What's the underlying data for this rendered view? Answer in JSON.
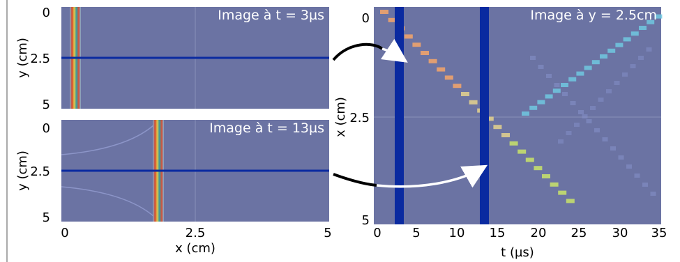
{
  "panels": {
    "top_left": {
      "caption": "Image à t = 3µs",
      "y_ticks": [
        "0",
        "2.5",
        "5"
      ],
      "ylabel": "y (cm)"
    },
    "bottom_left": {
      "caption": "Image à t = 13µs",
      "y_ticks": [
        "0",
        "2.5",
        "5"
      ],
      "ylabel": "y (cm)",
      "x_ticks": [
        "0",
        "2.5",
        "5"
      ],
      "xlabel": "x (cm)"
    },
    "right": {
      "caption": "Image à y = 2.5cm",
      "y_ticks": [
        "0",
        "2.5",
        "5"
      ],
      "ylabel": "x (cm)",
      "x_ticks": [
        "0",
        "5",
        "10",
        "15",
        "20",
        "25",
        "30",
        "35"
      ],
      "xlabel": "t (µs)"
    }
  },
  "colors": {
    "background_field": "#6b73a3",
    "band": "#0a2aa0",
    "arrow_black": "#000000",
    "arrow_white": "#ffffff"
  }
}
